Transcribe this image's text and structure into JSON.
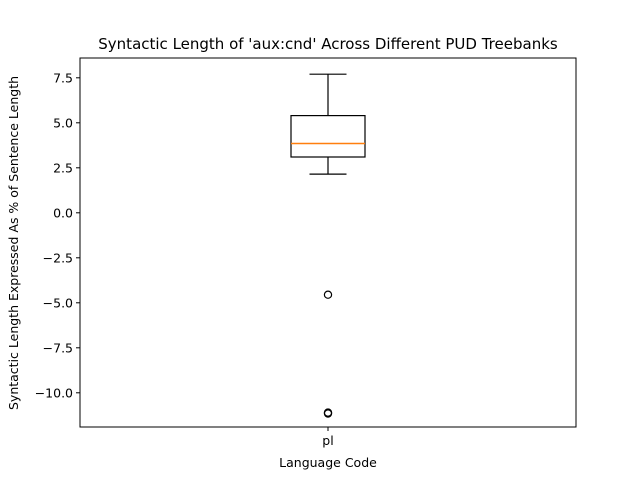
{
  "chart_data": {
    "type": "box",
    "title": "Syntactic Length of 'aux:cnd' Across Different PUD Treebanks",
    "xlabel": "Language Code",
    "ylabel": "Syntactic Length Expressed As % of Sentence Length",
    "categories": [
      "pl"
    ],
    "boxes": [
      {
        "category": "pl",
        "whisker_low": 2.15,
        "q1": 3.1,
        "median": 3.85,
        "q3": 5.4,
        "whisker_high": 7.7,
        "outliers": [
          -4.55,
          -11.1,
          -11.15
        ]
      }
    ],
    "ylim": [
      -11.9,
      8.6
    ],
    "yticks": [
      -10.0,
      -7.5,
      -5.0,
      -2.5,
      0.0,
      2.5,
      5.0,
      7.5
    ],
    "ytick_labels": [
      "−10.0",
      "−7.5",
      "−5.0",
      "−2.5",
      "0.0",
      "2.5",
      "5.0",
      "7.5"
    ],
    "grid": false,
    "colors": {
      "box": "#000000",
      "median": "#ff7f0e",
      "outlier": "#000000"
    }
  }
}
